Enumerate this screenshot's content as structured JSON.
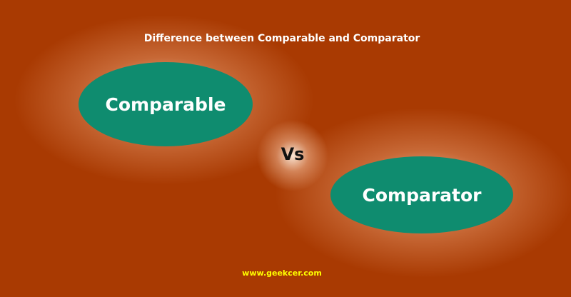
{
  "title": "Difference between Comparable and Comparator",
  "left_term": "Comparable",
  "separator": "Vs",
  "right_term": "Comparator",
  "website": "www.geekcer.com",
  "colors": {
    "background": "#a93a02",
    "ellipse": "#0f8c6f",
    "title_text": "#ffffff",
    "vs_text": "#111111",
    "website_text": "#ffff00"
  }
}
